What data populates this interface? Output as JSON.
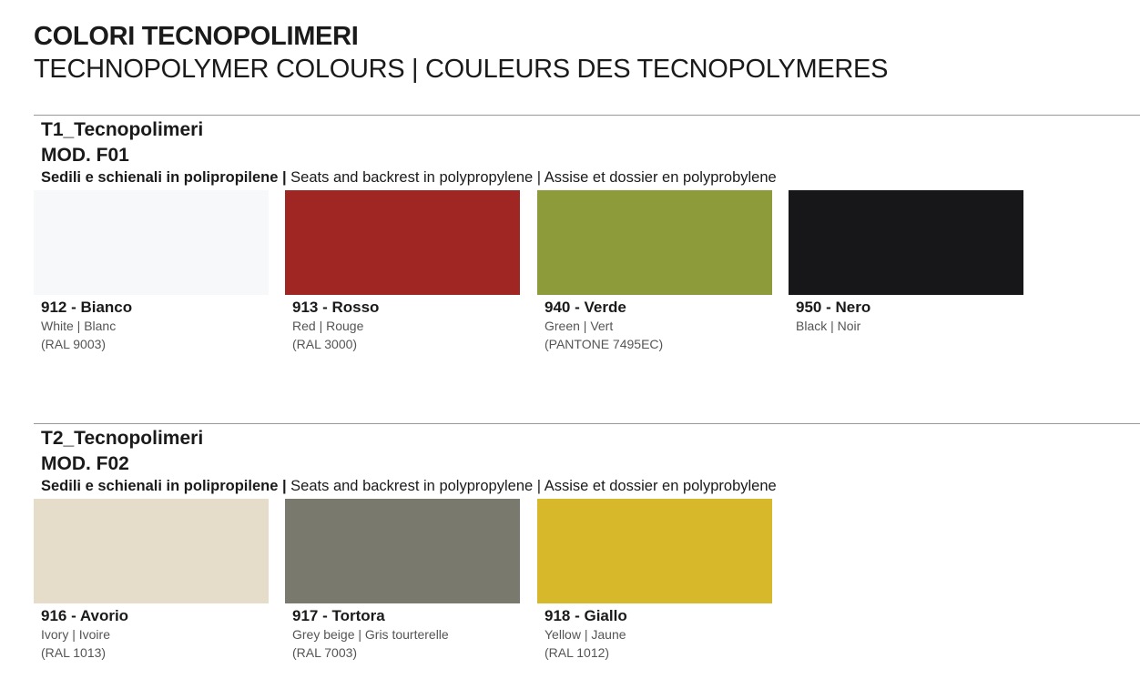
{
  "header": {
    "title": "COLORI TECNOPOLIMERI",
    "subtitle": "TECHNOPOLYMER COLOURS | COULEURS DES TECNOPOLYMERES"
  },
  "sections": [
    {
      "title": "T1_Tecnopolimeri",
      "model": "MOD. F01",
      "desc_bold": "Sedili e schienali in polipropilene |",
      "desc_rest": " Seats and backrest in polypropylene | Assise et dossier en polyprobylene",
      "swatches": [
        {
          "code": "912 - Bianco",
          "names": "White | Blanc",
          "ref": "(RAL 9003)",
          "color": "#f7f8fa"
        },
        {
          "code": "913 - Rosso",
          "names": "Red | Rouge",
          "ref": "(RAL 3000)",
          "color": "#a02624"
        },
        {
          "code": "940 - Verde",
          "names": "Green | Vert",
          "ref": "(PANTONE 7495EC)",
          "color": "#8e9b3b"
        },
        {
          "code": "950 - Nero",
          "names": "Black | Noir",
          "ref": "",
          "color": "#17171a"
        }
      ]
    },
    {
      "title": "T2_Tecnopolimeri",
      "model": "MOD. F02",
      "desc_bold": "Sedili e schienali in polipropilene |",
      "desc_rest": " Seats and backrest in polypropylene | Assise et dossier en polyprobylene",
      "swatches": [
        {
          "code": "916 - Avorio",
          "names": "Ivory | Ivoire",
          "ref": "(RAL 1013)",
          "color": "#e5ddca"
        },
        {
          "code": "917 - Tortora",
          "names": "Grey beige | Gris tourterelle",
          "ref": "(RAL 7003)",
          "color": "#7a796d"
        },
        {
          "code": "918 - Giallo",
          "names": "Yellow | Jaune",
          "ref": "(RAL 1012)",
          "color": "#d8b82b"
        }
      ]
    }
  ]
}
